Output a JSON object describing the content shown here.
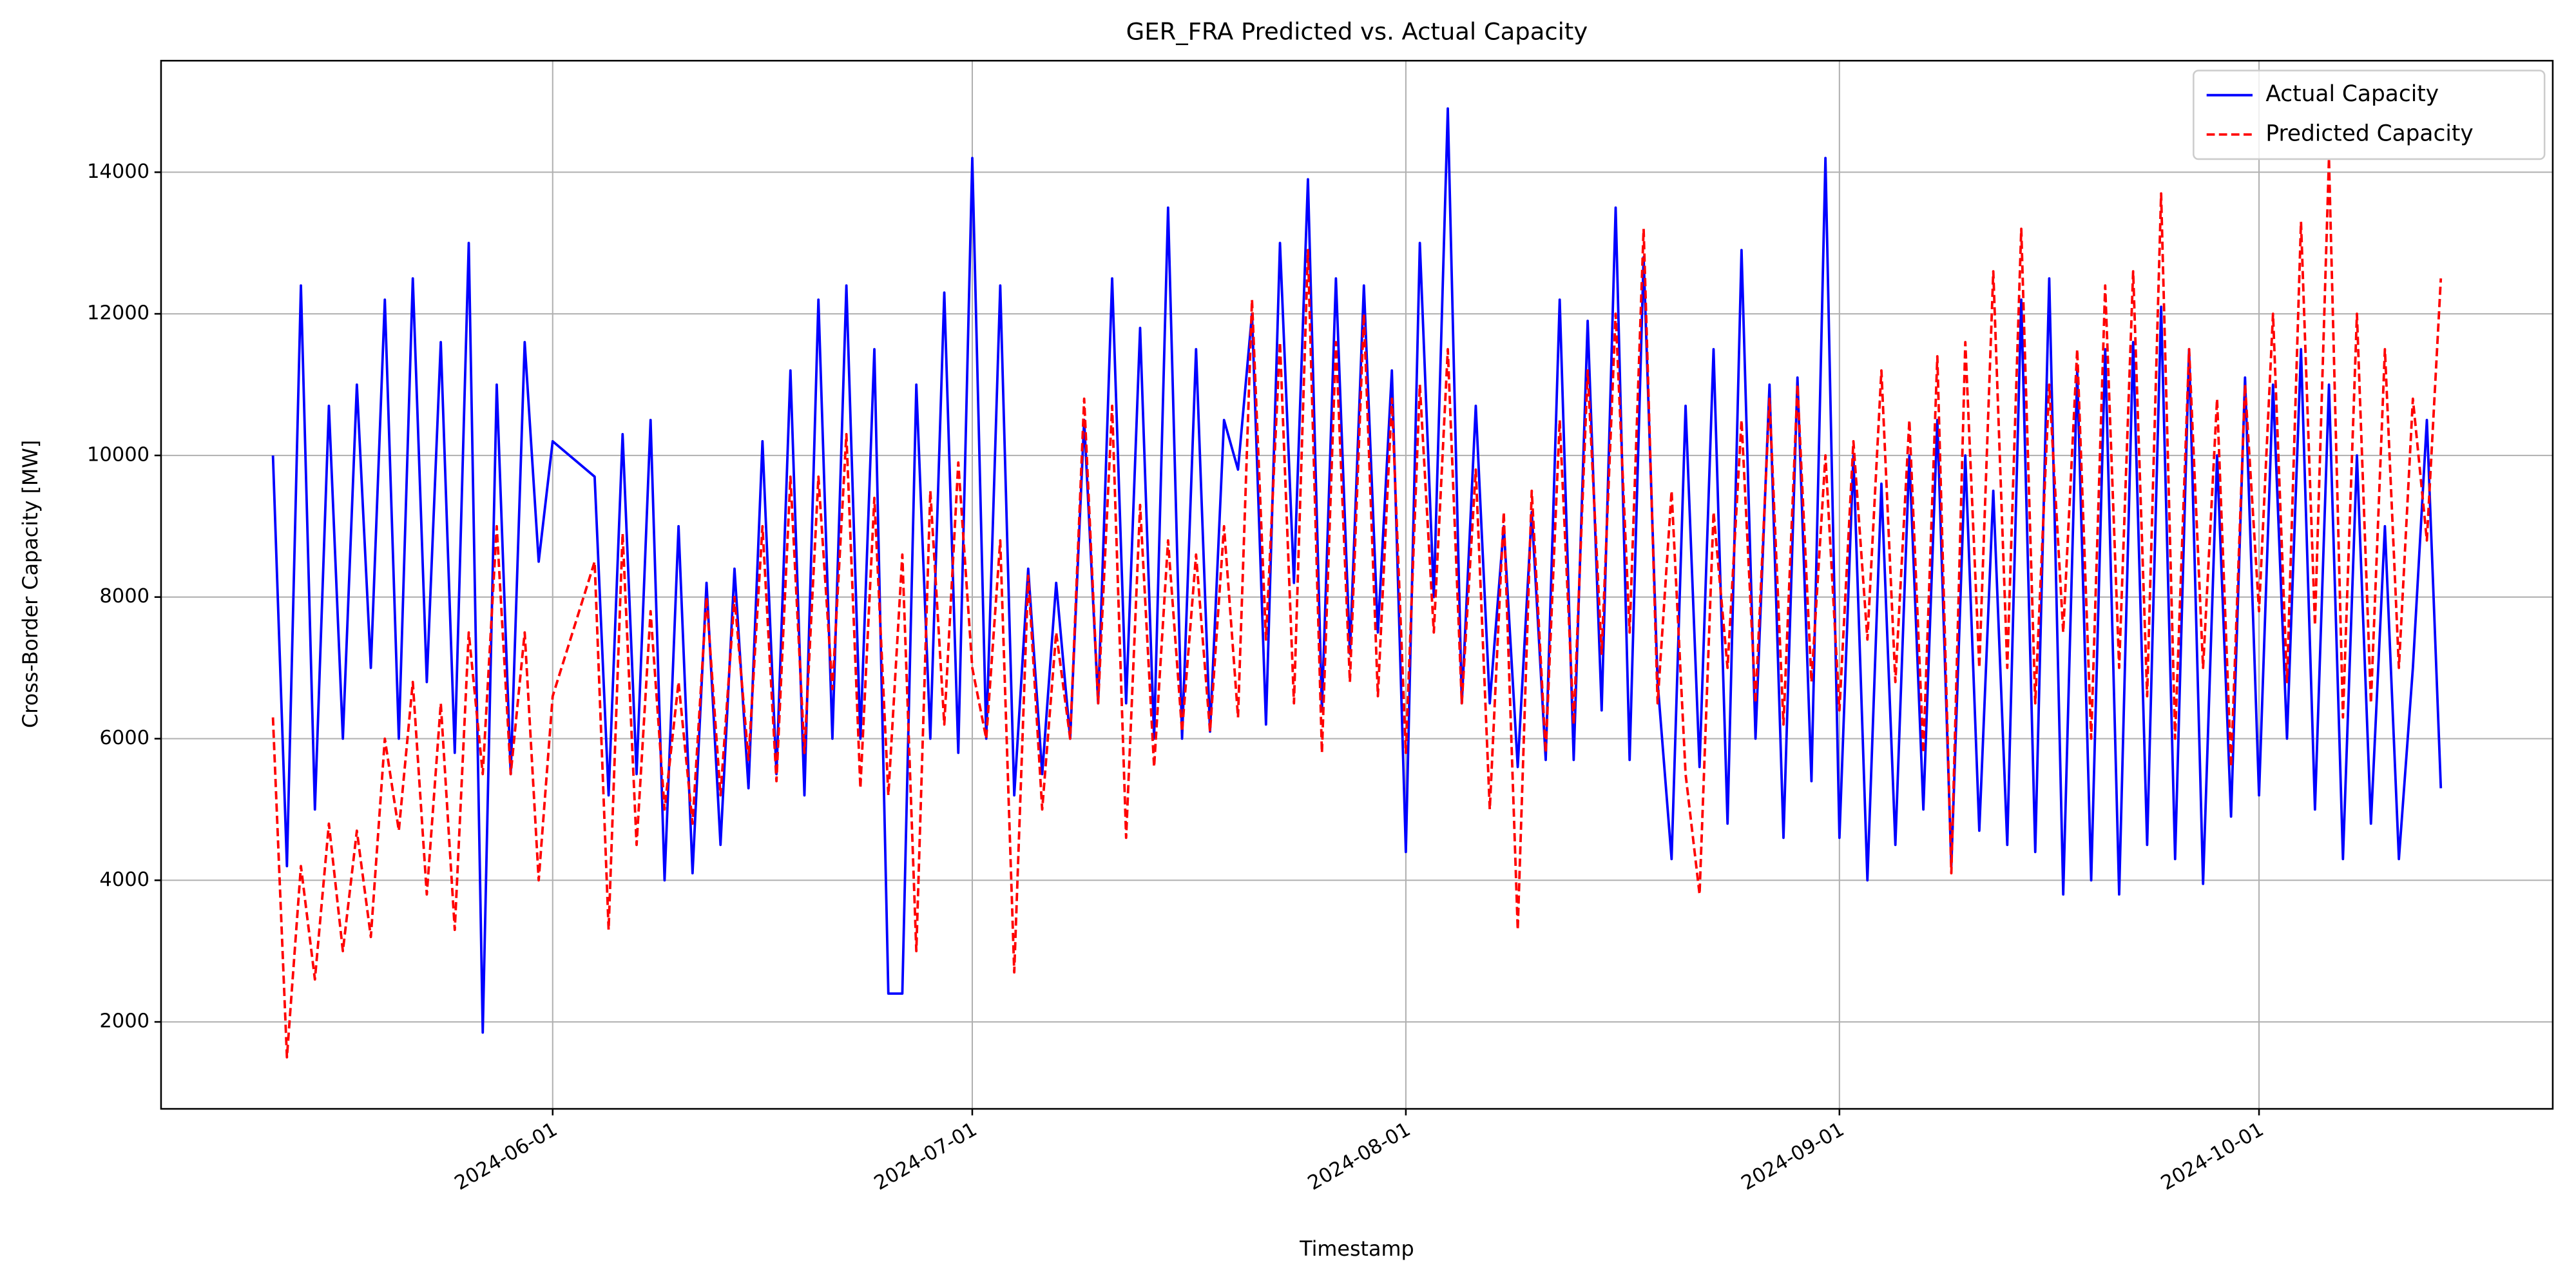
{
  "chart_data": {
    "type": "line",
    "title": "GER_FRA Predicted vs. Actual Capacity",
    "x_label": "Timestamp",
    "y_label": "Cross-Border Capacity [MW]",
    "x": [
      "2024-05-12",
      "2024-05-13",
      "2024-05-14",
      "2024-05-15",
      "2024-05-16",
      "2024-05-17",
      "2024-05-18",
      "2024-05-19",
      "2024-05-20",
      "2024-05-21",
      "2024-05-22",
      "2024-05-23",
      "2024-05-24",
      "2024-05-25",
      "2024-05-26",
      "2024-05-27",
      "2024-05-28",
      "2024-05-29",
      "2024-05-30",
      "2024-05-31",
      "2024-06-01",
      "2024-06-04",
      "2024-06-05",
      "2024-06-06",
      "2024-06-07",
      "2024-06-08",
      "2024-06-09",
      "2024-06-10",
      "2024-06-11",
      "2024-06-12",
      "2024-06-13",
      "2024-06-14",
      "2024-06-15",
      "2024-06-16",
      "2024-06-17",
      "2024-06-18",
      "2024-06-19",
      "2024-06-20",
      "2024-06-21",
      "2024-06-22",
      "2024-06-23",
      "2024-06-24",
      "2024-06-25",
      "2024-06-26",
      "2024-06-27",
      "2024-06-28",
      "2024-06-29",
      "2024-06-30",
      "2024-07-01",
      "2024-07-02",
      "2024-07-03",
      "2024-07-04",
      "2024-07-05",
      "2024-07-06",
      "2024-07-07",
      "2024-07-08",
      "2024-07-09",
      "2024-07-10",
      "2024-07-11",
      "2024-07-12",
      "2024-07-13",
      "2024-07-14",
      "2024-07-15",
      "2024-07-16",
      "2024-07-17",
      "2024-07-18",
      "2024-07-19",
      "2024-07-20",
      "2024-07-21",
      "2024-07-22",
      "2024-07-23",
      "2024-07-24",
      "2024-07-25",
      "2024-07-26",
      "2024-07-27",
      "2024-07-28",
      "2024-07-29",
      "2024-07-30",
      "2024-07-31",
      "2024-08-01",
      "2024-08-02",
      "2024-08-03",
      "2024-08-04",
      "2024-08-05",
      "2024-08-06",
      "2024-08-07",
      "2024-08-08",
      "2024-08-09",
      "2024-08-10",
      "2024-08-11",
      "2024-08-12",
      "2024-08-13",
      "2024-08-14",
      "2024-08-15",
      "2024-08-16",
      "2024-08-17",
      "2024-08-18",
      "2024-08-19",
      "2024-08-20",
      "2024-08-21",
      "2024-08-22",
      "2024-08-23",
      "2024-08-24",
      "2024-08-25",
      "2024-08-26",
      "2024-08-27",
      "2024-08-28",
      "2024-08-29",
      "2024-08-30",
      "2024-08-31",
      "2024-09-01",
      "2024-09-02",
      "2024-09-03",
      "2024-09-04",
      "2024-09-05",
      "2024-09-06",
      "2024-09-07",
      "2024-09-08",
      "2024-09-09",
      "2024-09-10",
      "2024-09-11",
      "2024-09-12",
      "2024-09-13",
      "2024-09-14",
      "2024-09-15",
      "2024-09-16",
      "2024-09-17",
      "2024-09-18",
      "2024-09-19",
      "2024-09-20",
      "2024-09-21",
      "2024-09-22",
      "2024-09-23",
      "2024-09-24",
      "2024-09-25",
      "2024-09-26",
      "2024-09-27",
      "2024-09-28",
      "2024-09-29",
      "2024-09-30",
      "2024-10-01",
      "2024-10-02",
      "2024-10-03",
      "2024-10-04",
      "2024-10-05",
      "2024-10-06",
      "2024-10-07",
      "2024-10-08",
      "2024-10-09",
      "2024-10-10",
      "2024-10-11",
      "2024-10-12",
      "2024-10-13",
      "2024-10-14"
    ],
    "series": [
      {
        "name": "Actual Capacity",
        "color": "#0000ff",
        "dash": false,
        "values": [
          10000,
          4200,
          12400,
          5000,
          10700,
          6000,
          11000,
          7000,
          12200,
          6000,
          12500,
          6800,
          11600,
          5800,
          13000,
          1850,
          11000,
          5500,
          11600,
          8500,
          10200,
          9700,
          5200,
          10300,
          5500,
          10500,
          4000,
          9000,
          4100,
          8200,
          4500,
          8400,
          5300,
          10200,
          5500,
          11200,
          5200,
          12200,
          6000,
          12400,
          6000,
          11500,
          2400,
          2400,
          11000,
          6000,
          12300,
          5800,
          14200,
          6000,
          12400,
          5200,
          8400,
          5500,
          8200,
          6000,
          10500,
          6500,
          12500,
          6500,
          11800,
          6000,
          13500,
          6000,
          11500,
          6100,
          10500,
          9800,
          12000,
          6200,
          13000,
          8200,
          13900,
          6400,
          12500,
          7200,
          12400,
          7500,
          11200,
          4400,
          13000,
          8000,
          14900,
          6500,
          10700,
          6500,
          9000,
          5600,
          9200,
          5700,
          12200,
          5700,
          11900,
          6400,
          13500,
          5700,
          12800,
          6800,
          4300,
          10700,
          5600,
          11500,
          4800,
          12900,
          6000,
          11000,
          4600,
          11100,
          5400,
          14200,
          4600,
          10000,
          4000,
          9600,
          4500,
          10000,
          5000,
          10500,
          4200,
          10000,
          4700,
          9500,
          4500,
          12200,
          4400,
          12500,
          3800,
          11200,
          4000,
          11500,
          3800,
          11600,
          4500,
          12100,
          4300,
          11500,
          3950,
          10000,
          4900,
          11100,
          5200,
          11000,
          6000,
          11500,
          5000,
          11000,
          4300,
          10000,
          4800,
          9000,
          4300,
          7000,
          10500,
          5300
        ]
      },
      {
        "name": "Predicted Capacity",
        "color": "#ff0000",
        "dash": true,
        "values": [
          6300,
          1500,
          4200,
          2600,
          4800,
          3000,
          4700,
          3200,
          6000,
          4700,
          6800,
          3800,
          6500,
          3300,
          7500,
          5500,
          9000,
          5500,
          7500,
          4000,
          6600,
          8500,
          3300,
          8900,
          4500,
          7800,
          5000,
          6800,
          4800,
          8000,
          5200,
          8000,
          5700,
          9000,
          5400,
          9700,
          5800,
          9700,
          6700,
          10300,
          5300,
          9400,
          5200,
          8600,
          3000,
          9500,
          6200,
          9900,
          7000,
          6000,
          8800,
          2700,
          8300,
          5000,
          7500,
          6000,
          10800,
          6500,
          10700,
          4600,
          9300,
          5600,
          8800,
          6100,
          8600,
          6100,
          9000,
          6300,
          12200,
          7400,
          11600,
          6500,
          12900,
          5800,
          11600,
          6800,
          12000,
          6600,
          10800,
          5800,
          11000,
          7500,
          11500,
          6500,
          9800,
          5000,
          9200,
          3300,
          9500,
          5800,
          10500,
          6200,
          11200,
          7200,
          12000,
          7500,
          13200,
          6500,
          9500,
          5500,
          3800,
          9200,
          7000,
          10500,
          6500,
          10800,
          6200,
          11000,
          6800,
          10000,
          6400,
          10200,
          7400,
          11200,
          6800,
          10500,
          5800,
          11400,
          4100,
          11600,
          7000,
          12600,
          7000,
          13200,
          6500,
          11000,
          7500,
          11500,
          6000,
          12400,
          7000,
          12600,
          6600,
          13700,
          6000,
          11500,
          7000,
          10800,
          5600,
          11000,
          7800,
          12000,
          6800,
          13300,
          7600,
          14200,
          6300,
          12000,
          6500,
          11500,
          7000,
          10800,
          8800,
          12500
        ]
      }
    ],
    "xlim": [
      "2024-05-04",
      "2024-10-22"
    ],
    "xticks": [
      "2024-06-01",
      "2024-07-01",
      "2024-08-01",
      "2024-09-01",
      "2024-10-01"
    ],
    "ylim": [
      772,
      15575
    ],
    "yticks": [
      2000,
      4000,
      6000,
      8000,
      10000,
      12000,
      14000
    ],
    "grid": true,
    "legend": "upper right"
  }
}
